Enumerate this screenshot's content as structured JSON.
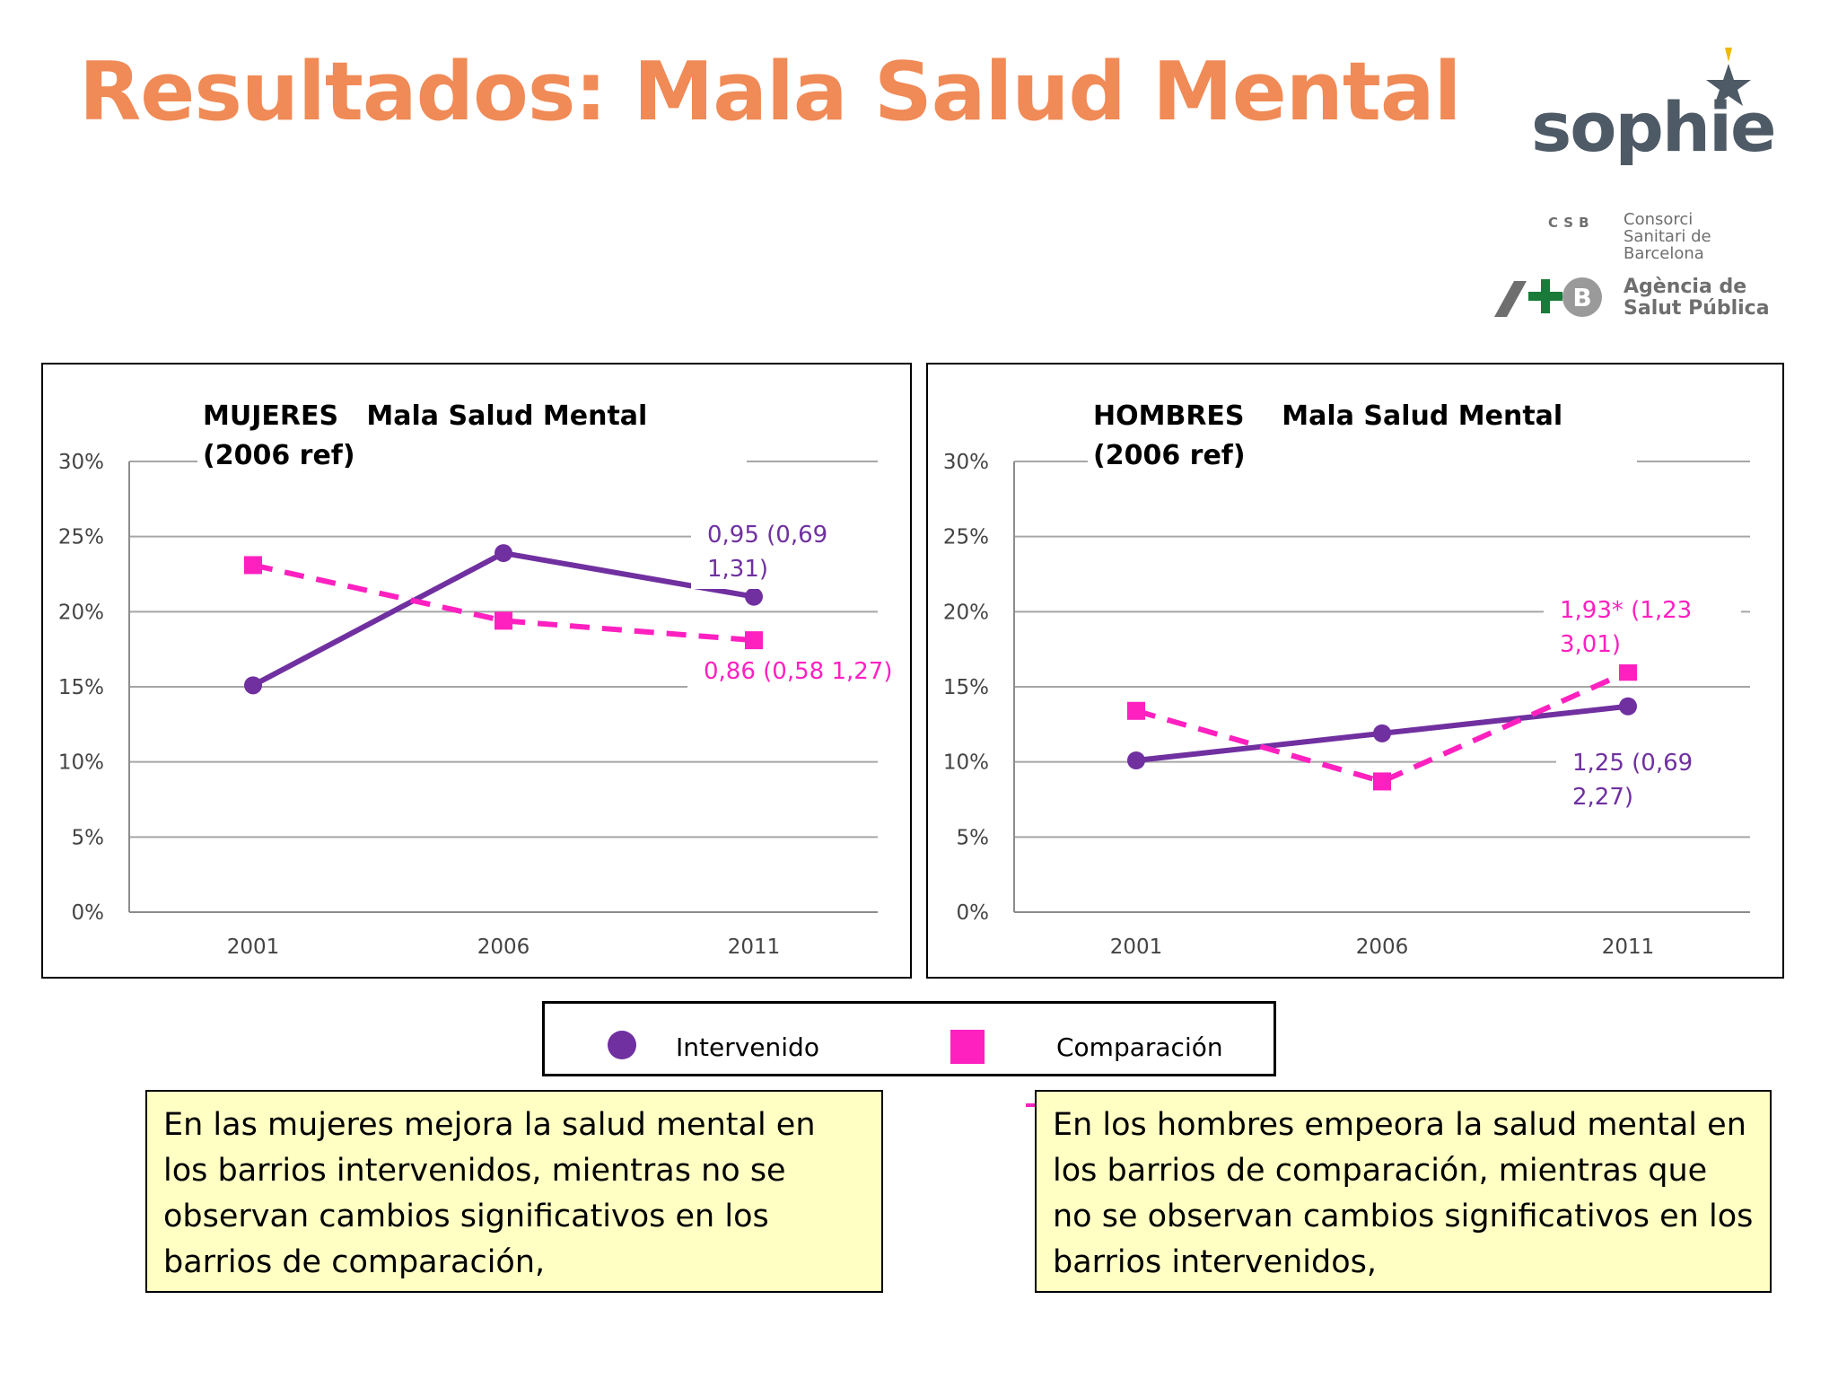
{
  "slide": {
    "title": "Resultados: Mala Salud Mental",
    "logos": {
      "sophie": "sophie",
      "csb_abbrev": "CSB",
      "csb_name": "Consorci Sanitari de Barcelona",
      "aspb_name": "Agència de Salut Pública"
    }
  },
  "legend": {
    "intervened": "Intervenido",
    "comparison": "Comparación"
  },
  "notes": {
    "left": "En las mujeres mejora la salud mental en los barrios intervenidos, mientras no se observan cambios significativos en los barrios de comparación,",
    "right": "En los hombres empeora la salud mental en los barrios de comparación, mientras que no se observan cambios significativos en los barrios intervenidos,"
  },
  "colors": {
    "title": "#f08a56",
    "intervened": "#7030a0",
    "comparison": "#ff20c0",
    "note_bg": "#ffffc4",
    "grid": "#a6a6a6"
  },
  "chart_data": [
    {
      "type": "line",
      "title": "MUJERES   Mala Salud Mental (2006 ref)",
      "categories": [
        "2001",
        "2006",
        "2011"
      ],
      "yticks": [
        "0%",
        "5%",
        "10%",
        "15%",
        "20%",
        "25%",
        "30%"
      ],
      "ylim": [
        0,
        30
      ],
      "grid": true,
      "series": [
        {
          "name": "Intervenido",
          "values": [
            15.1,
            23.9,
            21.0
          ],
          "style": "solid",
          "marker": "circle"
        },
        {
          "name": "Comparación",
          "values": [
            23.1,
            19.4,
            18.1
          ],
          "style": "dashed",
          "marker": "square"
        }
      ],
      "annotations": [
        {
          "series": 0,
          "text": "0,95 (0,69\n1,31)"
        },
        {
          "series": 1,
          "text": "0,86 (0,58  1,27)"
        }
      ]
    },
    {
      "type": "line",
      "title": "HOMBRES    Mala Salud Mental (2006 ref)",
      "categories": [
        "2001",
        "2006",
        "2011"
      ],
      "yticks": [
        "0%",
        "5%",
        "10%",
        "15%",
        "20%",
        "25%",
        "30%"
      ],
      "ylim": [
        0,
        30
      ],
      "grid": true,
      "series": [
        {
          "name": "Intervenido",
          "values": [
            10.1,
            11.9,
            13.7
          ],
          "style": "solid",
          "marker": "circle"
        },
        {
          "name": "Comparación",
          "values": [
            13.4,
            8.7,
            16.0
          ],
          "style": "dashed",
          "marker": "square"
        }
      ],
      "annotations": [
        {
          "series": 1,
          "text": "1,93* (1,23\n3,01)"
        },
        {
          "series": 0,
          "text": "1,25 (0,69\n2,27)"
        }
      ]
    }
  ]
}
